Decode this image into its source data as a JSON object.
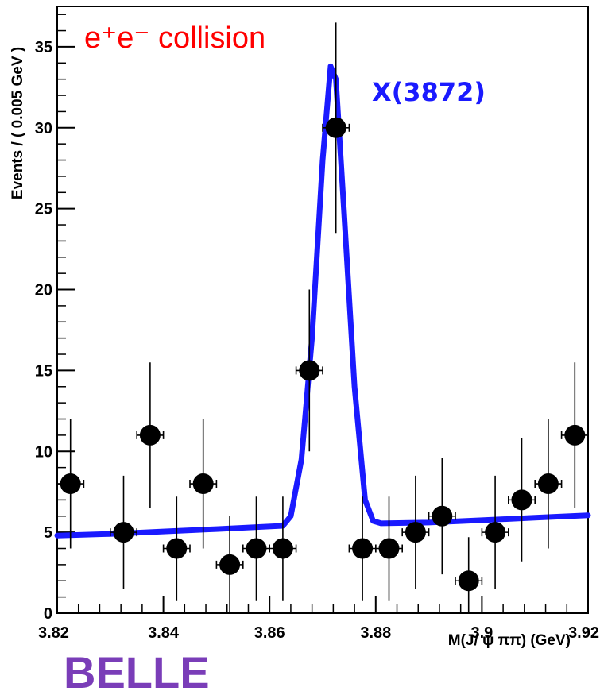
{
  "chart_data": {
    "type": "scatter",
    "xlabel": "M(J/ ψ ππ) (GeV)",
    "ylabel": "Events / ( 0.005 GeV )",
    "xlim": [
      3.82,
      3.92
    ],
    "ylim": [
      0,
      37.5
    ],
    "xticks": [
      3.82,
      3.84,
      3.86,
      3.88,
      3.9,
      3.92
    ],
    "xtick_labels": [
      "3.82",
      "3.84",
      "3.86",
      "3.88",
      "3.9",
      "3.92"
    ],
    "yticks": [
      0,
      5,
      10,
      15,
      20,
      25,
      30,
      35
    ],
    "ytick_labels": [
      "0",
      "5",
      "10",
      "15",
      "20",
      "25",
      "30",
      "35"
    ],
    "grid": false,
    "bin_half_width": 0.0025,
    "series": [
      {
        "type": "errorbar",
        "color": "#000000",
        "points": [
          {
            "x": 3.8225,
            "y": 8,
            "err": 4
          },
          {
            "x": 3.8325,
            "y": 5,
            "err": 3.5
          },
          {
            "x": 3.8375,
            "y": 11,
            "err": 4.5
          },
          {
            "x": 3.8425,
            "y": 4,
            "err": 3.2
          },
          {
            "x": 3.8475,
            "y": 8,
            "err": 4
          },
          {
            "x": 3.8525,
            "y": 3,
            "err": 3
          },
          {
            "x": 3.8575,
            "y": 4,
            "err": 3.2
          },
          {
            "x": 3.8625,
            "y": 4,
            "err": 3.2
          },
          {
            "x": 3.8675,
            "y": 15,
            "err": 5
          },
          {
            "x": 3.8725,
            "y": 30,
            "err": 6.5
          },
          {
            "x": 3.8775,
            "y": 4,
            "err": 3.2
          },
          {
            "x": 3.8825,
            "y": 4,
            "err": 3.2
          },
          {
            "x": 3.8875,
            "y": 5,
            "err": 3.5
          },
          {
            "x": 3.8925,
            "y": 6,
            "err": 3.6
          },
          {
            "x": 3.8975,
            "y": 2,
            "err": 2.7
          },
          {
            "x": 3.9025,
            "y": 5,
            "err": 3.5
          },
          {
            "x": 3.9075,
            "y": 7,
            "err": 3.8
          },
          {
            "x": 3.9125,
            "y": 8,
            "err": 4
          },
          {
            "x": 3.9175,
            "y": 11,
            "err": 4.5
          }
        ]
      },
      {
        "type": "line",
        "color": "#1a1aff",
        "points": [
          [
            3.82,
            4.8
          ],
          [
            3.83,
            4.9
          ],
          [
            3.84,
            5.05
          ],
          [
            3.85,
            5.2
          ],
          [
            3.8625,
            5.4
          ],
          [
            3.864,
            6.0
          ],
          [
            3.866,
            9.5
          ],
          [
            3.868,
            17.0
          ],
          [
            3.87,
            28.0
          ],
          [
            3.8715,
            33.8
          ],
          [
            3.8725,
            33.0
          ],
          [
            3.874,
            25.0
          ],
          [
            3.876,
            14.0
          ],
          [
            3.878,
            7.0
          ],
          [
            3.8795,
            5.7
          ],
          [
            3.881,
            5.55
          ],
          [
            3.89,
            5.6
          ],
          [
            3.9,
            5.75
          ],
          [
            3.91,
            5.9
          ],
          [
            3.92,
            6.05
          ]
        ]
      }
    ],
    "annotations": {
      "collision": "e⁺e⁻ collision",
      "signal": "X(3872)",
      "experiment": "BELLE"
    },
    "colors": {
      "collision": "#ff0000",
      "signal": "#1a1aff",
      "experiment": "#7a3db8"
    }
  }
}
